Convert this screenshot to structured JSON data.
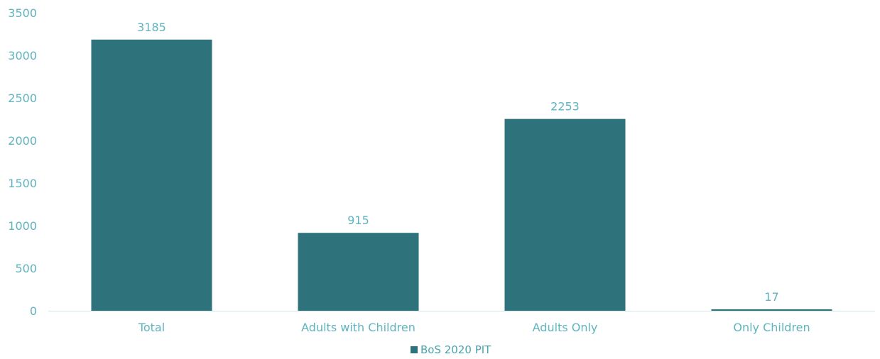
{
  "chart_data": {
    "type": "bar",
    "categories": [
      "Total",
      "Adults with Children",
      "Adults Only",
      "Only Children"
    ],
    "series": [
      {
        "name": "BoS 2020 PIT",
        "values": [
          3185,
          915,
          2253,
          17
        ],
        "color": "#2e727b"
      }
    ],
    "data_labels": [
      "3185",
      "915",
      "2253",
      "17"
    ],
    "yticks": [
      0,
      500,
      1000,
      1500,
      2000,
      2500,
      3000,
      3500
    ],
    "ylim": [
      0,
      3500
    ],
    "grid": false,
    "legend_position": "bottom",
    "text_color": "#5fb4c0",
    "axis_color": "#d0e6ea"
  }
}
